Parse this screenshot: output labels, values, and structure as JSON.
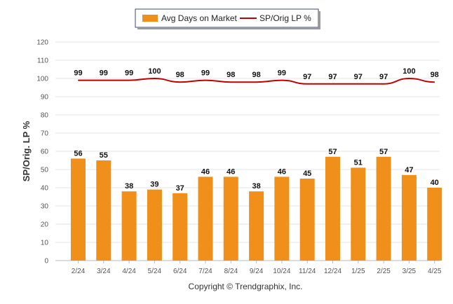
{
  "chart_data": {
    "type": "bar",
    "categories": [
      "2/24",
      "3/24",
      "4/24",
      "5/24",
      "6/24",
      "7/24",
      "8/24",
      "9/24",
      "10/24",
      "11/24",
      "12/24",
      "1/25",
      "2/25",
      "3/25",
      "4/25"
    ],
    "series": [
      {
        "name": "Avg Days on Market",
        "type": "bar",
        "color": "#F0901A",
        "values": [
          56,
          55,
          38,
          39,
          37,
          46,
          46,
          38,
          46,
          45,
          57,
          51,
          57,
          47,
          40
        ]
      },
      {
        "name": "SP/Orig LP %",
        "type": "line",
        "color": "#C00000",
        "values": [
          99,
          99,
          99,
          100,
          98,
          99,
          98,
          98,
          99,
          97,
          97,
          97,
          97,
          100,
          98
        ]
      }
    ],
    "ylabel": "SP/Orig. LP %",
    "ylim": [
      0,
      120
    ],
    "yticks": [
      0,
      10,
      20,
      30,
      40,
      50,
      60,
      70,
      80,
      90,
      100,
      110,
      120
    ],
    "grid": true,
    "legend_position": "top-center",
    "footer": "Copyright © Trendgraphix, Inc."
  }
}
